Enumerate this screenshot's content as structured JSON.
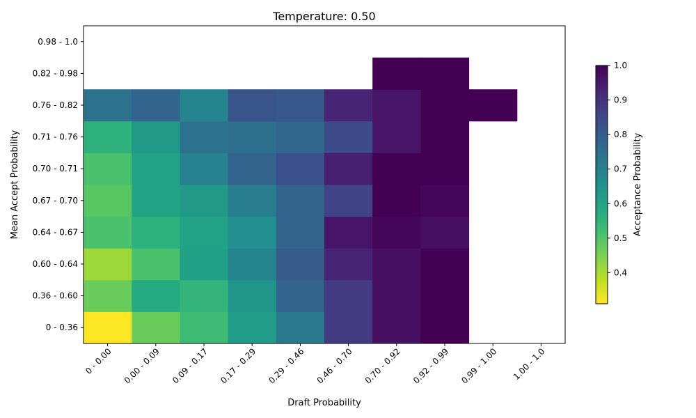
{
  "chart_data": {
    "type": "heatmap",
    "title": "Temperature: 0.50",
    "xlabel": "Draft Probability",
    "ylabel": "Mean Accept Probability",
    "x_categories": [
      "0 - 0.00",
      "0.00 - 0.09",
      "0.09 - 0.17",
      "0.17 - 0.29",
      "0.29 - 0.46",
      "0.46 - 0.70",
      "0.70 - 0.92",
      "0.92 - 0.99",
      "0.99 - 1.00",
      "1.00 - 1.0"
    ],
    "y_categories": [
      "0 - 0.36",
      "0.36 - 0.60",
      "0.60 - 0.64",
      "0.64 - 0.67",
      "0.67 - 0.70",
      "0.70 - 0.71",
      "0.71 - 0.76",
      "0.76 - 0.82",
      "0.82 - 0.98",
      "0.98 - 1.0"
    ],
    "values": [
      [
        0.31,
        0.47,
        0.53,
        0.62,
        0.72,
        0.88,
        0.97,
        1.0,
        null,
        null
      ],
      [
        0.47,
        0.58,
        0.55,
        0.64,
        0.78,
        0.88,
        0.97,
        1.0,
        null,
        null
      ],
      [
        0.41,
        0.51,
        0.61,
        0.69,
        0.8,
        0.93,
        0.97,
        1.0,
        null,
        null
      ],
      [
        0.51,
        0.56,
        0.6,
        0.66,
        0.78,
        0.96,
        0.99,
        0.97,
        null,
        null
      ],
      [
        0.49,
        0.6,
        0.63,
        0.71,
        0.78,
        0.86,
        1.0,
        0.99,
        null,
        null
      ],
      [
        0.51,
        0.6,
        0.7,
        0.78,
        0.83,
        0.94,
        1.0,
        1.0,
        null,
        null
      ],
      [
        0.56,
        0.63,
        0.74,
        0.75,
        0.77,
        0.84,
        0.96,
        1.0,
        null,
        null
      ],
      [
        0.74,
        0.78,
        0.69,
        0.82,
        0.81,
        0.93,
        0.96,
        1.0,
        1.0,
        null
      ],
      [
        null,
        null,
        null,
        null,
        null,
        null,
        1.0,
        1.0,
        null,
        null
      ],
      [
        null,
        null,
        null,
        null,
        null,
        null,
        null,
        null,
        null,
        null
      ]
    ],
    "colorbar": {
      "label": "Acceptance Probability",
      "min": 0.31,
      "max": 1.0,
      "ticks": [
        0.4,
        0.5,
        0.6,
        0.7,
        0.8,
        0.9,
        1.0
      ],
      "tick_labels": [
        "0.4",
        "0.5",
        "0.6",
        "0.7",
        "0.8",
        "0.9",
        "1.0"
      ],
      "colormap": "viridis_r"
    },
    "grid": false
  }
}
